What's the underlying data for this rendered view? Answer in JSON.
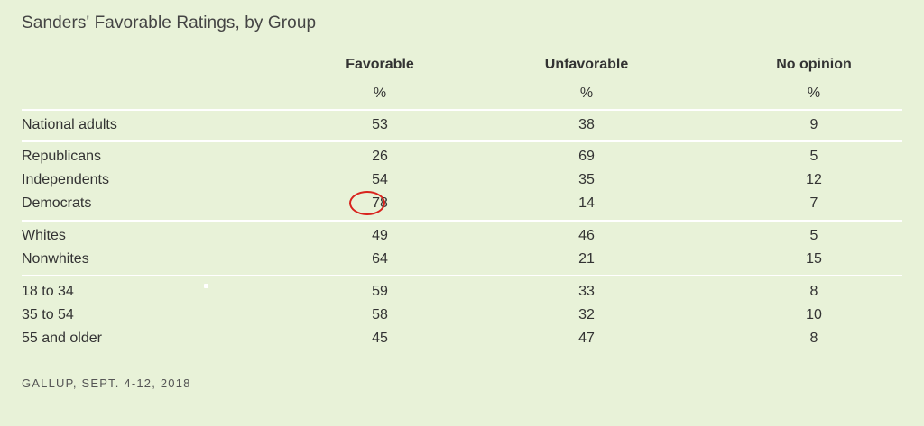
{
  "chart_data": {
    "type": "table",
    "title": "Sanders' Favorable Ratings, by Group",
    "columns": [
      "Favorable",
      "Unfavorable",
      "No opinion"
    ],
    "units": [
      "%",
      "%",
      "%"
    ],
    "row_groups": [
      [
        {
          "label": "National adults",
          "values": [
            "53",
            "38",
            "9"
          ]
        }
      ],
      [
        {
          "label": "Republicans",
          "values": [
            "26",
            "69",
            "5"
          ]
        },
        {
          "label": "Independents",
          "values": [
            "54",
            "35",
            "12"
          ]
        },
        {
          "label": "Democrats",
          "values": [
            "78",
            "14",
            "7"
          ]
        }
      ],
      [
        {
          "label": "Whites",
          "values": [
            "49",
            "46",
            "5"
          ]
        },
        {
          "label": "Nonwhites",
          "values": [
            "64",
            "21",
            "15"
          ]
        }
      ],
      [
        {
          "label": "18 to 34",
          "values": [
            "59",
            "33",
            "8"
          ]
        },
        {
          "label": "35 to 54",
          "values": [
            "58",
            "32",
            "10"
          ]
        },
        {
          "label": "55 and older",
          "values": [
            "45",
            "47",
            "8"
          ]
        }
      ]
    ],
    "highlighted_cell": {
      "row": "Democrats",
      "column": "Favorable"
    },
    "source": "GALLUP, SEPT. 4-12, 2018",
    "colors": {
      "background": "#e8f2d8",
      "divider": "#ffffff",
      "highlight": "#d8231d",
      "text": "#333333"
    }
  }
}
